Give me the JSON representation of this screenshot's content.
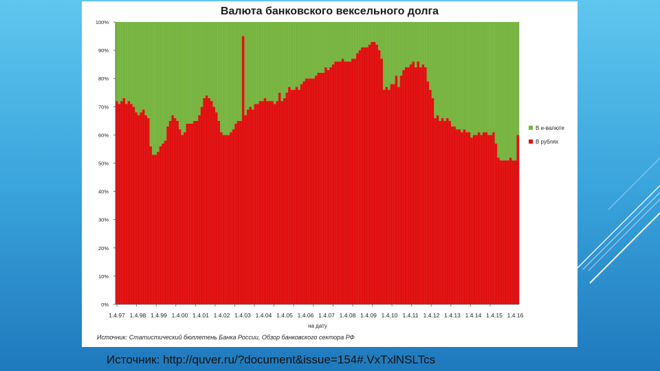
{
  "slide": {
    "caption": "Источник: http://quver.ru/?document&issue=154#.VxTxlNSLTcs",
    "source_note": "Источник: Статистический бюллетень Банка России, Обзор банковского сектора РФ"
  },
  "colors": {
    "rubles": "#e01010",
    "foreign": "#77b440"
  },
  "chart_data": {
    "type": "bar",
    "title": "Валюта банковского вексельного долга",
    "xlabel": "на дату",
    "ylabel": "",
    "ylim": [
      0,
      100
    ],
    "yticks": [
      "0%",
      "10%",
      "20%",
      "30%",
      "40%",
      "50%",
      "60%",
      "70%",
      "80%",
      "90%",
      "100%"
    ],
    "x_tick_labels": [
      "1.4.97",
      "1.4.98",
      "1.4.99",
      "1.4.00",
      "1.4.01",
      "1.4.02",
      "1.4.03",
      "1.4.04",
      "1.4.05",
      "1.4.06",
      "1.4.07",
      "1.4.08",
      "1.4.09",
      "1.4.10",
      "1.4.11",
      "1.4.12",
      "1.4.13",
      "1.4.14",
      "1.4.15",
      "1.4.16"
    ],
    "stacked": true,
    "legend_placement": "right",
    "grid": false,
    "series": [
      {
        "name": "В рублях",
        "color": "#e01010",
        "values": [
          72,
          71,
          72,
          73,
          71,
          72,
          71,
          70,
          68,
          67,
          68,
          69,
          67,
          66,
          56,
          53,
          53,
          54,
          56,
          57,
          58,
          63,
          65,
          67,
          66,
          65,
          62,
          60,
          61,
          64,
          64,
          64,
          65,
          65,
          67,
          70,
          73,
          74,
          73,
          72,
          70,
          68,
          65,
          61,
          60,
          60,
          60,
          61,
          62,
          64,
          65,
          65,
          95,
          67,
          69,
          70,
          69,
          71,
          71,
          72,
          72,
          73,
          72,
          72,
          72,
          71,
          72,
          75,
          72,
          73,
          75,
          77,
          76,
          76,
          77,
          76,
          78,
          79,
          80,
          80,
          80,
          80,
          81,
          82,
          82,
          82,
          84,
          83,
          84,
          85,
          86,
          86,
          86,
          87,
          86,
          86,
          86,
          87,
          87,
          89,
          90,
          91,
          91,
          91,
          92,
          93,
          93,
          92,
          90,
          87,
          76,
          77,
          76,
          78,
          78,
          81,
          77,
          81,
          83,
          84,
          84,
          85,
          86,
          84,
          86,
          84,
          85,
          84,
          79,
          76,
          73,
          66,
          67,
          65,
          66,
          65,
          66,
          65,
          63,
          63,
          62,
          62,
          61,
          62,
          61,
          61,
          59,
          60,
          60,
          61,
          60,
          61,
          61,
          60,
          60,
          61,
          57,
          52,
          51,
          51,
          51,
          51,
          52,
          51,
          51,
          60
        ]
      },
      {
        "name": "В и-валюте",
        "color": "#77b440",
        "values": [
          28,
          29,
          28,
          27,
          29,
          28,
          29,
          30,
          32,
          33,
          32,
          31,
          33,
          34,
          44,
          47,
          47,
          46,
          44,
          43,
          42,
          37,
          35,
          33,
          34,
          35,
          38,
          40,
          39,
          36,
          36,
          36,
          35,
          35,
          33,
          30,
          27,
          26,
          27,
          28,
          30,
          32,
          35,
          39,
          40,
          40,
          40,
          39,
          38,
          36,
          35,
          35,
          5,
          33,
          31,
          30,
          31,
          29,
          29,
          28,
          28,
          27,
          28,
          28,
          28,
          29,
          28,
          25,
          28,
          27,
          25,
          23,
          24,
          24,
          23,
          24,
          22,
          21,
          20,
          20,
          20,
          20,
          19,
          18,
          18,
          18,
          16,
          17,
          16,
          15,
          14,
          14,
          14,
          13,
          14,
          14,
          14,
          13,
          13,
          11,
          10,
          9,
          9,
          9,
          8,
          7,
          7,
          8,
          10,
          13,
          24,
          23,
          24,
          22,
          22,
          19,
          23,
          19,
          17,
          16,
          16,
          15,
          14,
          16,
          14,
          16,
          15,
          16,
          21,
          24,
          27,
          34,
          33,
          35,
          34,
          35,
          34,
          35,
          37,
          37,
          38,
          38,
          39,
          38,
          39,
          39,
          41,
          40,
          40,
          39,
          40,
          39,
          39,
          40,
          40,
          39,
          43,
          48,
          49,
          49,
          49,
          49,
          48,
          49,
          49,
          40
        ]
      }
    ]
  }
}
